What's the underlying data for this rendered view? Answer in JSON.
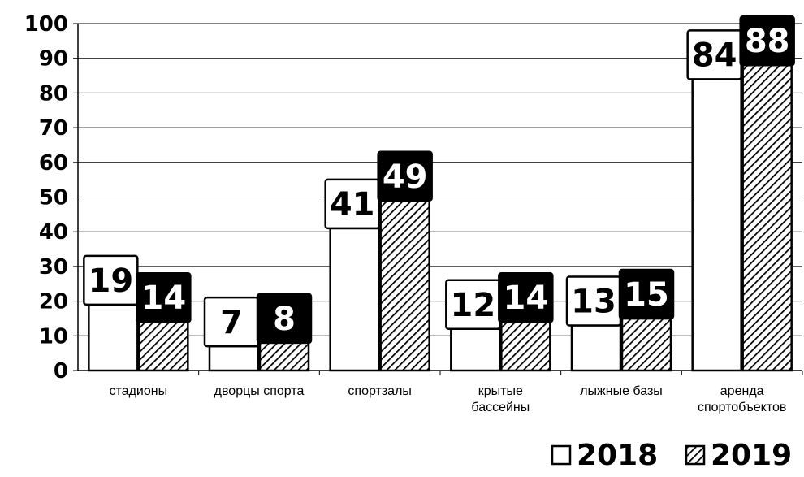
{
  "chart_data": {
    "type": "bar",
    "categories": [
      [
        "стадионы"
      ],
      [
        "дворцы спорта"
      ],
      [
        "спортзалы"
      ],
      [
        "крытые",
        "бассейны"
      ],
      [
        "лыжные базы"
      ],
      [
        "аренда",
        "спортобъектов"
      ]
    ],
    "series": [
      {
        "name": "2018",
        "values": [
          19,
          7,
          41,
          12,
          13,
          84
        ],
        "fill": "#ffffff"
      },
      {
        "name": "2019",
        "values": [
          14,
          8,
          49,
          14,
          15,
          88
        ],
        "fill": "hatch"
      }
    ],
    "ylim": [
      0,
      100
    ],
    "yticks": [
      0,
      10,
      20,
      30,
      40,
      50,
      60,
      70,
      80,
      90,
      100
    ],
    "grid": true,
    "legend": "bottom-right",
    "colors": {
      "bar_stroke": "#000000",
      "label_dark_bg": "#000000",
      "label_light_bg": "#ffffff"
    }
  }
}
